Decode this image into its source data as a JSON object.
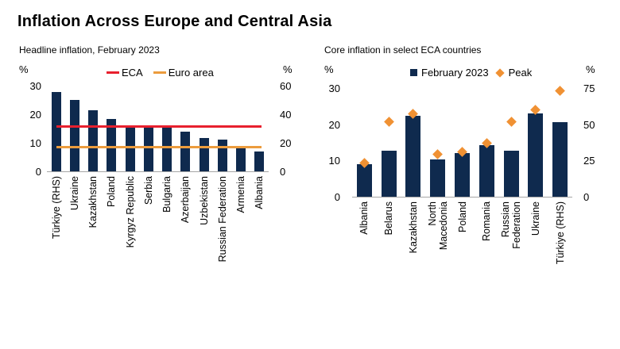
{
  "title": "Inflation Across Europe and Central Asia",
  "colors": {
    "bar": "#0F2A4E",
    "eca_line": "#E8202E",
    "euro_area_line": "#EC9C3D",
    "peak_marker": "#F09133",
    "axis_line": "#A6A6A6",
    "text": "#000000",
    "background": "#FFFFFF"
  },
  "chart_data": [
    {
      "type": "bar",
      "title": "Headline inflation, February 2023",
      "legend_position": "top",
      "grid": false,
      "left_axis": {
        "unit": "%",
        "ticks": [
          30,
          20,
          10,
          0
        ],
        "max": 30
      },
      "right_axis": {
        "unit": "%",
        "ticks": [
          60,
          40,
          20,
          0
        ],
        "max": 60
      },
      "legend": [
        {
          "label": "ECA",
          "marker": "line",
          "color": "#E8202E"
        },
        {
          "label": "Euro area",
          "marker": "line",
          "color": "#EC9C3D"
        }
      ],
      "categories": [
        "Türkiye (RHS)",
        "Ukraine",
        "Kazakhstan",
        "Poland",
        "Kyrgyz Republic",
        "Serbia",
        "Bulgaria",
        "Azerbaijan",
        "Uzbekistan",
        "Russian Federation",
        "Armenia",
        "Albania"
      ],
      "values": [
        55.5,
        25.0,
        21.3,
        18.4,
        16.0,
        16.0,
        15.6,
        13.9,
        11.7,
        11.0,
        8.4,
        7.0
      ],
      "rhs_note": "Türkiye plotted on right-hand scale (0–60)",
      "reference_lines": [
        {
          "label": "ECA",
          "value": 15.7,
          "color": "#E8202E"
        },
        {
          "label": "Euro area",
          "value": 8.5,
          "color": "#EC9C3D"
        }
      ]
    },
    {
      "type": "bar",
      "title": "Core inflation in select ECA countries",
      "legend_position": "top",
      "grid": false,
      "left_axis": {
        "unit": "%",
        "ticks": [
          30,
          20,
          10,
          0
        ],
        "max": 30
      },
      "right_axis": {
        "unit": "%",
        "ticks": [
          75,
          50,
          25,
          0
        ],
        "max": 75
      },
      "legend": [
        {
          "label": "February 2023",
          "marker": "square",
          "color": "#0F2A4E"
        },
        {
          "label": "Peak",
          "marker": "diamond",
          "color": "#F09133"
        }
      ],
      "categories": [
        "Albania",
        "Belarus",
        "Kazakhstan",
        "North\nMacedonia",
        "Poland",
        "Romania",
        "Russian\nFederation",
        "Ukraine",
        "Türkiye (RHS)"
      ],
      "series": [
        {
          "name": "February 2023",
          "type": "bar",
          "values": [
            9.0,
            12.7,
            22.3,
            10.3,
            12.0,
            14.3,
            12.8,
            23.0,
            51.5
          ]
        },
        {
          "name": "Peak",
          "type": "diamond",
          "values": [
            9.3,
            20.7,
            23.0,
            11.7,
            12.3,
            14.8,
            20.6,
            24.0,
            73.0
          ]
        }
      ],
      "rhs_note": "Türkiye plotted on right-hand scale (0–75)"
    }
  ]
}
